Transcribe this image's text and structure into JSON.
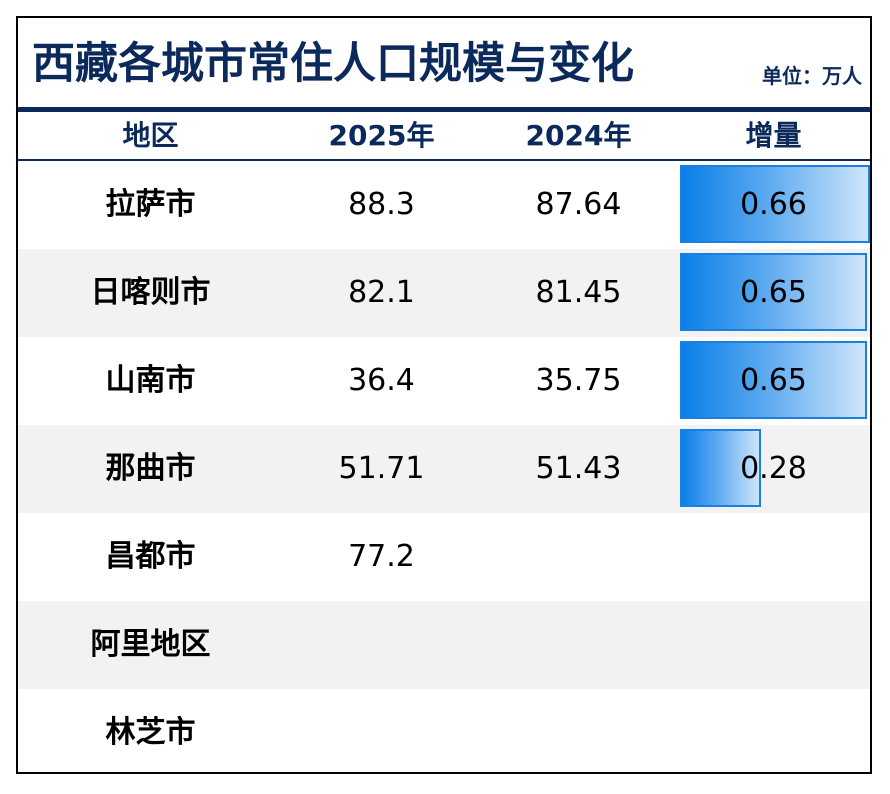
{
  "chart_data": {
    "type": "table",
    "title": "西藏各城市常住人口规模与变化",
    "unit_label": "单位：万人",
    "columns": [
      "地区",
      "2025年",
      "2024年",
      "增量"
    ],
    "rows": [
      {
        "region": "拉萨市",
        "y2025": "88.3",
        "y2024": "87.64",
        "delta": "0.66",
        "delta_value": 0.66
      },
      {
        "region": "日喀则市",
        "y2025": "82.1",
        "y2024": "81.45",
        "delta": "0.65",
        "delta_value": 0.65
      },
      {
        "region": "山南市",
        "y2025": "36.4",
        "y2024": "35.75",
        "delta": "0.65",
        "delta_value": 0.65
      },
      {
        "region": "那曲市",
        "y2025": "51.71",
        "y2024": "51.43",
        "delta": "0.28",
        "delta_value": 0.28
      },
      {
        "region": "昌都市",
        "y2025": "77.2",
        "y2024": "",
        "delta": "",
        "delta_value": null
      },
      {
        "region": "阿里地区",
        "y2025": "",
        "y2024": "",
        "delta": "",
        "delta_value": null
      },
      {
        "region": "林芝市",
        "y2025": "",
        "y2024": "",
        "delta": "",
        "delta_value": null
      }
    ],
    "delta_bar_max": 0.66,
    "colors": {
      "title": "#0b2a5b",
      "bar_start": "#0a7ee8",
      "bar_end": "#cfe5fa",
      "bar_border": "#1a7fe0",
      "stripe": "#f2f2f2"
    }
  }
}
